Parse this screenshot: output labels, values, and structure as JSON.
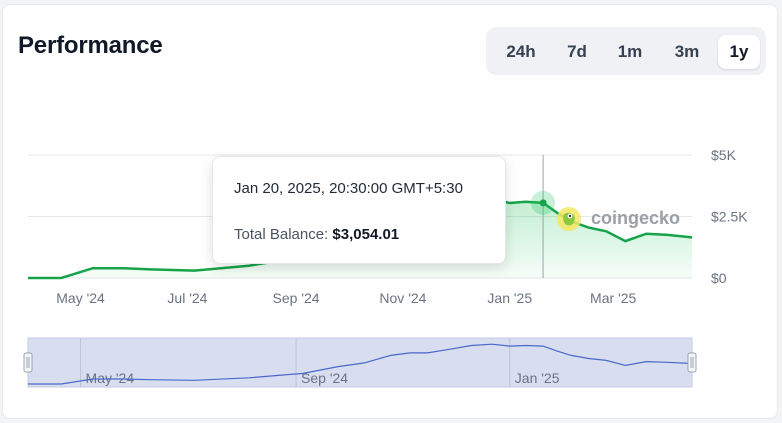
{
  "header": {
    "title": "Performance"
  },
  "ranges": [
    {
      "label": "24h",
      "active": false
    },
    {
      "label": "7d",
      "active": false
    },
    {
      "label": "1m",
      "active": false
    },
    {
      "label": "3m",
      "active": false
    },
    {
      "label": "1y",
      "active": true
    }
  ],
  "tooltip": {
    "date": "Jan 20, 2025, 20:30:00 GMT+5:30",
    "label": "Total Balance:",
    "value": "$3,054.01"
  },
  "watermark": {
    "text": "coingecko",
    "icon": "coingecko-logo-icon"
  },
  "colors": {
    "line": "#16a34a",
    "area": "#22c55e",
    "navigator_fill": "#d8def0",
    "navigator_line": "#4a67c9",
    "active_range_bg": "#ffffff"
  },
  "chart_data": {
    "type": "area",
    "series": [
      {
        "name": "Total Balance",
        "x": [
          "2024-04-01",
          "2024-04-20",
          "2024-05-08",
          "2024-05-25",
          "2024-06-10",
          "2024-07-05",
          "2024-08-05",
          "2024-09-05",
          "2024-09-25",
          "2024-10-10",
          "2024-10-25",
          "2024-11-05",
          "2024-11-15",
          "2024-11-28",
          "2024-12-10",
          "2024-12-22",
          "2025-01-01",
          "2025-01-10",
          "2025-01-20",
          "2025-01-28",
          "2025-02-05",
          "2025-02-15",
          "2025-02-25",
          "2025-03-08",
          "2025-03-20",
          "2025-04-01",
          "2025-04-15"
        ],
        "y": [
          0,
          0,
          400,
          400,
          350,
          300,
          500,
          850,
          1400,
          1700,
          2300,
          2500,
          2500,
          2800,
          3100,
          3200,
          3050,
          3100,
          3054,
          2650,
          2300,
          2050,
          1900,
          1500,
          1800,
          1750,
          1650
        ]
      }
    ],
    "x_ticks": [
      "May '24",
      "Jul '24",
      "Sep '24",
      "Nov '24",
      "Jan '25",
      "Mar '25"
    ],
    "y_ticks": [
      "$0",
      "$2.5K",
      "$5K"
    ],
    "ylim": [
      0,
      5000
    ],
    "grid": true,
    "navigator": {
      "labels": [
        "May '24",
        "Sep '24",
        "Jan '25"
      ]
    },
    "hover": {
      "x": "2025-01-20",
      "y": 3054.01
    }
  }
}
